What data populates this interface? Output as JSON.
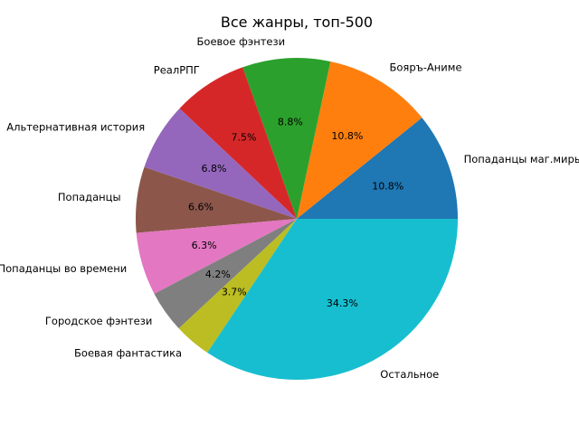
{
  "chart_data": {
    "type": "pie",
    "title": "Все жанры, топ-500",
    "slices": [
      {
        "label": "Попаданцы маг.миры",
        "value": 10.8,
        "pct_label": "10.8%",
        "color": "#1f77b4"
      },
      {
        "label": "Бояръ-Аниме",
        "value": 10.8,
        "pct_label": "10.8%",
        "color": "#ff7f0e"
      },
      {
        "label": "Боевое фэнтези",
        "value": 8.8,
        "pct_label": "8.8%",
        "color": "#2ca02c"
      },
      {
        "label": "РеалРПГ",
        "value": 7.5,
        "pct_label": "7.5%",
        "color": "#d62728"
      },
      {
        "label": "Альтернативная история",
        "value": 6.8,
        "pct_label": "6.8%",
        "color": "#9467bd"
      },
      {
        "label": "Попаданцы",
        "value": 6.6,
        "pct_label": "6.6%",
        "color": "#8c564b"
      },
      {
        "label": "Попаданцы во времени",
        "value": 6.3,
        "pct_label": "6.3%",
        "color": "#e377c2"
      },
      {
        "label": "Городское фэнтези",
        "value": 4.2,
        "pct_label": "4.2%",
        "color": "#7f7f7f"
      },
      {
        "label": "Боевая фантастика",
        "value": 3.7,
        "pct_label": "3.7%",
        "color": "#bcbd22"
      },
      {
        "label": "Остальное",
        "value": 34.3,
        "pct_label": "34.3%",
        "color": "#17becf"
      }
    ]
  }
}
